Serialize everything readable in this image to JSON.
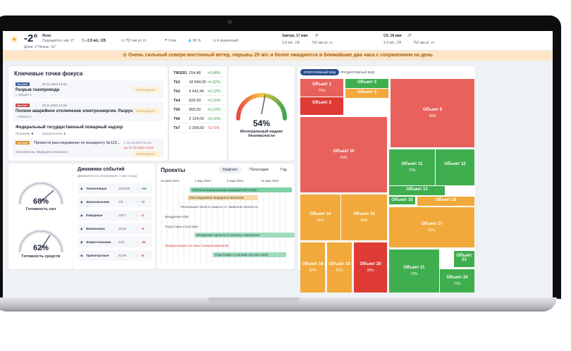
{
  "weather": {
    "now_temp": "-2°",
    "condition": "Ясно",
    "feels": "Ощущается, как -2°",
    "day_night": "Днем -1°Ночью -11°",
    "wind": "2,9 м/с, СВ",
    "pressure": "752 мм рт. ст.",
    "precip": "0 мм",
    "humidity": "65 %",
    "wind_level": "4 умеренный",
    "tomorrow_label": "Завтра, 17 мая",
    "tomorrow_temp": "-8°",
    "tomorrow_wind": "2,9 м/с, СВ",
    "tomorrow_pressure": "752 мм рт. ст.",
    "day3_label": "Сб, 18 мая",
    "day3_temp": "-8°",
    "day3_wind": "2,9 м/с, СВ",
    "day3_pressure": "752 мм рт. ст."
  },
  "alert": "⊙ Очень сильный северо-восточный ветер, порывы 25 м/с и более ожидаются в ближайшие два часа с сохранением на день",
  "focus": {
    "title": "Ключевые точки фокуса",
    "items": [
      {
        "id": "№12345",
        "date": "20.11.2024 14:53",
        "title": "Разрыв газопровода",
        "object": "⌂ Объект 1",
        "status": "В ПРОЦЕССЕ"
      },
      {
        "id": "№12347",
        "date": "20.11.2024 14:53",
        "title": "Полное аварийное отключение электроэнергии. Разрушени...",
        "object": "⌂ Объект 1",
        "status": "В ПРОЦЕССЕ"
      }
    ],
    "supervision": "Федеральный государственный пожарный надзор",
    "checks": "Проверки:",
    "checks_count": "6",
    "orders": "Предписания:",
    "orders_count": "1",
    "task_id": "№12345",
    "task_title": "Провести расследование по инциденту №123...",
    "task_date1": "с 24.10.2024 12:53",
    "task_date2": "до 27.10.2024 14:53",
    "executor": "Исполнитель: Ведущий специалист",
    "task_status": "В ПРОЦЕССЕ"
  },
  "tickers": {
    "header": "TIKER1",
    "rows": [
      {
        "name": "TIKER1",
        "value": "154,48",
        "change": "+0,48%"
      },
      {
        "name": "Tk2",
        "value": "18 840,00",
        "change": "+0,32%"
      },
      {
        "name": "Tk3",
        "value": "9 642,46",
        "change": "+0,12%"
      },
      {
        "name": "Tk4",
        "value": "829,50",
        "change": "+0,15%"
      },
      {
        "name": "Tk5",
        "value": "955,50",
        "change": "+0,22%"
      },
      {
        "name": "Tk6",
        "value": "2 124,00",
        "change": "+0,16%"
      },
      {
        "name": "Tk7",
        "value": "2 308,60",
        "change": "-0,71%"
      }
    ]
  },
  "safety": {
    "value": "54%",
    "label": "Интегральный индекс безопасности",
    "level": 0.54
  },
  "forces": {
    "value": "68%",
    "label": "Готовность сил",
    "level": 0.68
  },
  "funds": {
    "value": "62%",
    "label": "Готовность средств",
    "level": 0.62
  },
  "dynamics": {
    "title": "Динамика событий",
    "subtitle": "Динамическое обновление: 1 мин назад",
    "rows": [
      {
        "name": "Техногенные",
        "count": "150/249",
        "delta": "+99",
        "dir": "up"
      },
      {
        "name": "Экологические",
        "count": "7/9",
        "delta": "+2",
        "dir": "up"
      },
      {
        "name": "Пожарные",
        "count": "19/17",
        "delta": "-2",
        "dir": "dn"
      },
      {
        "name": "Физические",
        "count": "30/25",
        "delta": "-5",
        "dir": "dn"
      },
      {
        "name": "Энергетические",
        "count": "24/2",
        "delta": "-22",
        "dir": "dn"
      },
      {
        "name": "Транспортные",
        "count": "61/55",
        "delta": "-6",
        "dir": "dn"
      }
    ]
  },
  "projects": {
    "title": "Проекты",
    "tabs": [
      "Квартал",
      "Полугодие",
      "Год"
    ],
    "dates": [
      "24 фев 2024",
      "1 мар 2024",
      "6 мар 2024",
      "11 мар 2024"
    ],
    "bars": [
      "Проекты модернизации предприятий перер...",
      "Расследование инцидента №123445",
      "Реализация проекта защиты от лавинной опасности",
      "Внедрение КОБ",
      "Подготовка к выставке",
      "Внедрение проекта по умному освещению",
      "Модернизация системы позиционирования",
      "Подготовка к учениям Арктика-2025"
    ]
  },
  "treemap": {
    "tabs": [
      "ОПЕРАТИВНЫЙ ВИД",
      "ПРЕДИКТИВНЫЙ ВИД"
    ],
    "cells": [
      {
        "name": "Объект 1",
        "pct": "75%"
      },
      {
        "name": "Объект 3",
        "pct": ""
      },
      {
        "name": "Объект 4",
        "pct": ""
      },
      {
        "name": "Объект 2",
        "pct": ""
      },
      {
        "name": "Объект 9",
        "pct": "35%"
      },
      {
        "name": "Объект 10",
        "pct": "26%"
      },
      {
        "name": "Объект 11",
        "pct": "72%"
      },
      {
        "name": "Объект 12",
        "pct": ""
      },
      {
        "name": "Объект 13",
        "pct": ""
      },
      {
        "name": "Объект 15",
        "pct": ""
      },
      {
        "name": "Объект 16",
        "pct": ""
      },
      {
        "name": "Объект 14",
        "pct": "65%"
      },
      {
        "name": "Объект 14",
        "pct": "65%"
      },
      {
        "name": "Объект 17",
        "pct": "65%"
      },
      {
        "name": "Объект 18",
        "pct": "62%"
      },
      {
        "name": "Объект 19",
        "pct": "62%"
      },
      {
        "name": "Объект 20",
        "pct": "26%"
      },
      {
        "name": "Объект 21",
        "pct": "72%"
      },
      {
        "name": "Объект 24",
        "pct": "72%"
      },
      {
        "name": "Объект 23",
        "pct": ""
      }
    ]
  },
  "colors": {
    "red": "#e8615d",
    "orange": "#f0a93a",
    "green": "#3fae4f",
    "accent": "#2c4d8f"
  }
}
